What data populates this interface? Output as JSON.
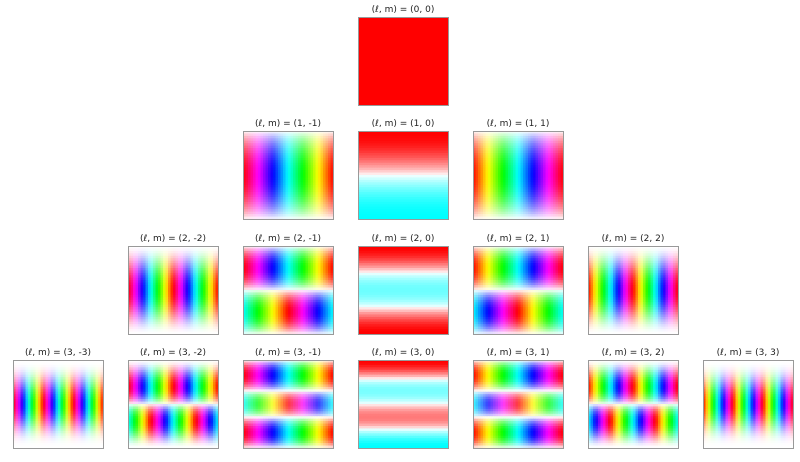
{
  "panels": [
    {
      "label": "(ℓ, m) = (0, 0)",
      "l": 0,
      "m": 0
    },
    {
      "label": "(ℓ, m) = (1, -1)",
      "l": 1,
      "m": -1
    },
    {
      "label": "(ℓ, m) = (1, 0)",
      "l": 1,
      "m": 0
    },
    {
      "label": "(ℓ, m) = (1, 1)",
      "l": 1,
      "m": 1
    },
    {
      "label": "(ℓ, m) = (2, -2)",
      "l": 2,
      "m": -2
    },
    {
      "label": "(ℓ, m) = (2, -1)",
      "l": 2,
      "m": -1
    },
    {
      "label": "(ℓ, m) = (2, 0)",
      "l": 2,
      "m": 0
    },
    {
      "label": "(ℓ, m) = (2, 1)",
      "l": 2,
      "m": 1
    },
    {
      "label": "(ℓ, m) = (2, 2)",
      "l": 2,
      "m": 2
    },
    {
      "label": "(ℓ, m) = (3, -3)",
      "l": 3,
      "m": -3
    },
    {
      "label": "(ℓ, m) = (3, -2)",
      "l": 3,
      "m": -2
    },
    {
      "label": "(ℓ, m) = (3, -1)",
      "l": 3,
      "m": -1
    },
    {
      "label": "(ℓ, m) = (3, 0)",
      "l": 3,
      "m": 0
    },
    {
      "label": "(ℓ, m) = (3, 1)",
      "l": 3,
      "m": 1
    },
    {
      "label": "(ℓ, m) = (3, 2)",
      "l": 3,
      "m": 2
    },
    {
      "label": "(ℓ, m) = (3, 3)",
      "l": 3,
      "m": 3
    }
  ],
  "colors": {
    "red": "#ff0000",
    "cyan": "#00ffff",
    "blue": "#0000ff",
    "green": "#00ff00",
    "background": "#ffffff"
  }
}
